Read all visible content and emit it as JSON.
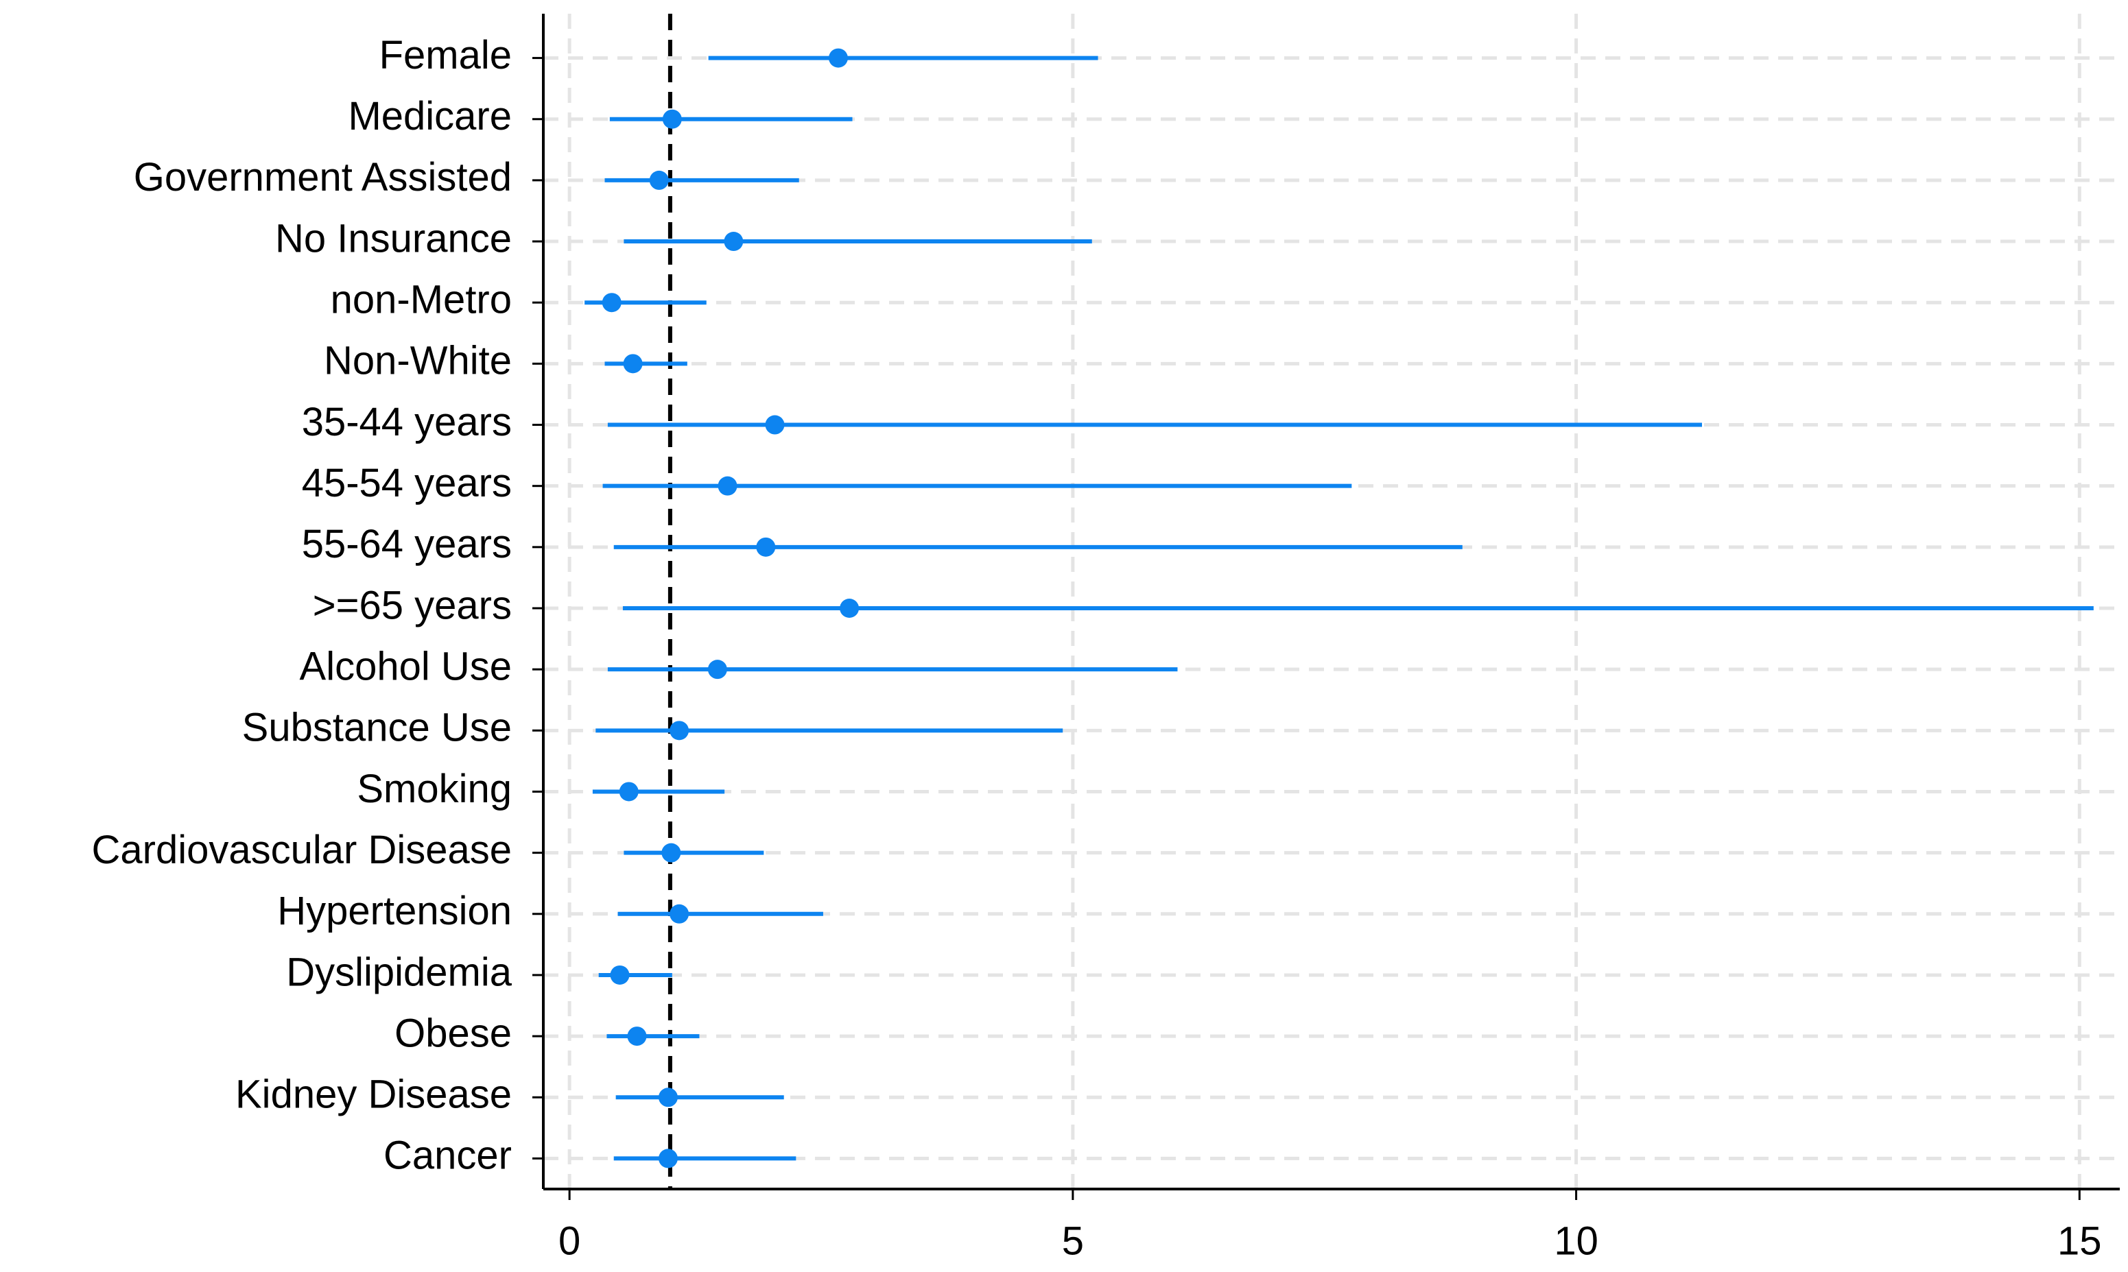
{
  "chart_data": {
    "type": "forest",
    "categories": [
      "Female",
      "Medicare",
      "Government Assisted",
      "No Insurance",
      "non-Metro",
      "Non-White",
      "35-44 years",
      "45-54 years",
      "55-64 years",
      ">=65 years",
      "Alcohol Use",
      "Substance Use",
      "Smoking",
      "Cardiovascular Disease",
      "Hypertension",
      "Dyslipidemia",
      "Obese",
      "Kidney Disease",
      "Cancer"
    ],
    "values": [
      2.67,
      1.02,
      0.89,
      1.63,
      0.42,
      0.63,
      2.04,
      1.57,
      1.95,
      2.78,
      1.47,
      1.09,
      0.59,
      1.01,
      1.09,
      0.5,
      0.67,
      0.98,
      0.98
    ],
    "lower": [
      1.38,
      0.4,
      0.35,
      0.54,
      0.15,
      0.35,
      0.38,
      0.33,
      0.44,
      0.53,
      0.38,
      0.26,
      0.23,
      0.54,
      0.48,
      0.29,
      0.37,
      0.46,
      0.44
    ],
    "upper": [
      5.25,
      2.81,
      2.28,
      5.19,
      1.36,
      1.17,
      11.25,
      7.77,
      8.87,
      15.14,
      6.04,
      4.9,
      1.54,
      1.93,
      2.52,
      1.02,
      1.29,
      2.13,
      2.25
    ],
    "color": "#0d84f0",
    "reference_line": 1,
    "xlim": [
      -0.26,
      15.4
    ],
    "xticks": [
      0,
      5,
      10,
      15
    ],
    "grid": true
  }
}
